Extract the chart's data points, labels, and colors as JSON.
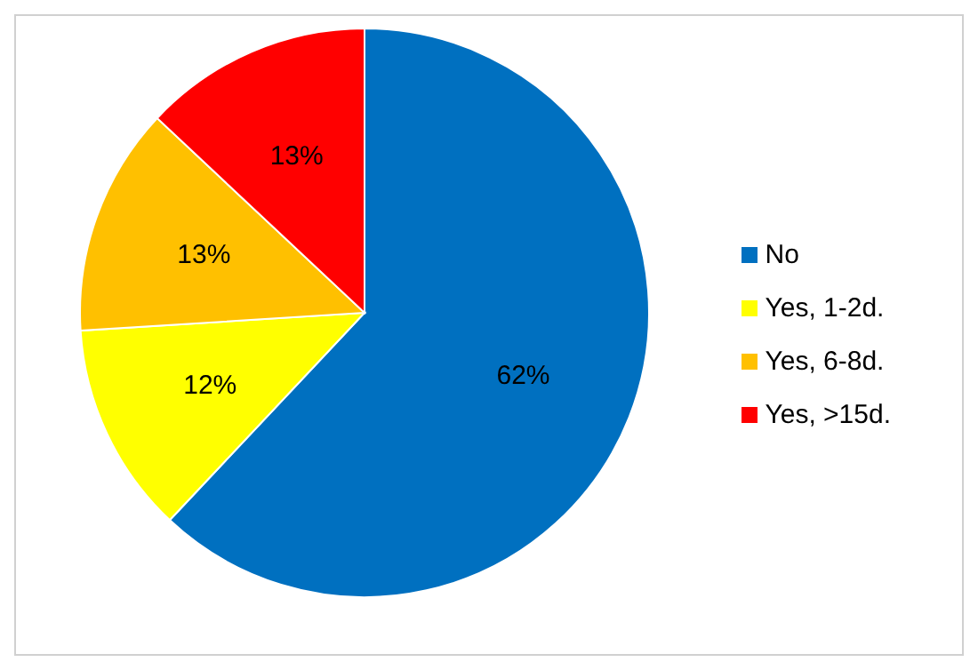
{
  "chart_data": {
    "type": "pie",
    "categories": [
      "No",
      "Yes, 1-2d.",
      "Yes, 6-8d.",
      "Yes, >15d."
    ],
    "values": [
      62,
      12,
      13,
      13
    ],
    "colors": [
      "#0070c0",
      "#ffff00",
      "#ffc000",
      "#ff0000"
    ],
    "value_labels": [
      "62%",
      "12%",
      "13%",
      "13%"
    ],
    "legend": "right"
  }
}
